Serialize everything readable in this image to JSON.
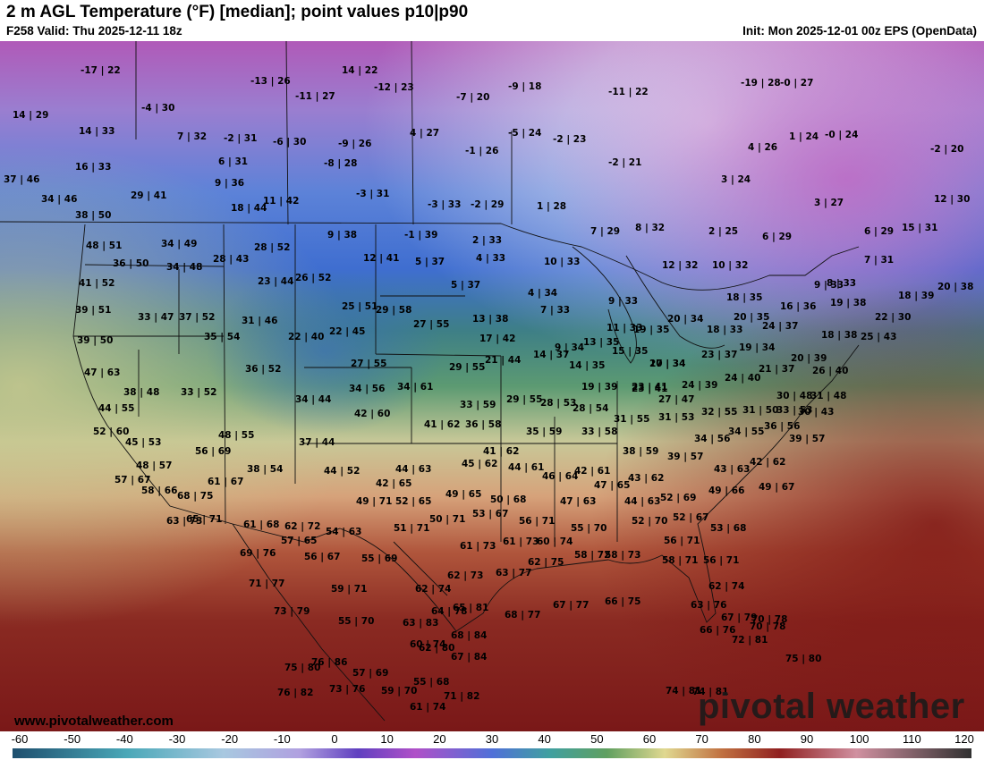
{
  "header": {
    "title": "2 m AGL Temperature (°F) [median]; point values p10|p90",
    "valid": "F258 Valid: Thu 2025-12-11 18z",
    "init": "Init: Mon 2025-12-01 00z EPS (OpenData)"
  },
  "footer": {
    "website": "www.pivotalweather.com",
    "brand": "pivotal weather"
  },
  "colorbar": {
    "ticks": [
      "-60",
      "-50",
      "-40",
      "-30",
      "-20",
      "-10",
      "0",
      "10",
      "20",
      "30",
      "40",
      "50",
      "60",
      "70",
      "80",
      "90",
      "100",
      "110",
      "120"
    ]
  },
  "points": [
    "-17|22",
    "-13|26",
    "14|22",
    "-12|23",
    "-7|20",
    "-9|18",
    "-11|22",
    "-19|28",
    "-0|27",
    "14|29",
    "-4|30",
    "-11|27",
    "4|27",
    "14|33",
    "7|32",
    "-2|31",
    "-6|30",
    "-9|26",
    "-5|24",
    "-2|23",
    "16|33",
    "6|31",
    "-8|28",
    "-1|26",
    "-2|21",
    "4|26",
    "1|24",
    "-0|24",
    "-2|20",
    "37|46",
    "9|36",
    "-3|31",
    "3|24",
    "34|46",
    "29|41",
    "11|42",
    "-3|33",
    "-2|29",
    "1|28",
    "3|27",
    "12|30",
    "18|44",
    "38|50",
    "9|38",
    "-1|39",
    "2|33",
    "7|29",
    "8|32",
    "2|25",
    "6|29",
    "6|29",
    "15|31",
    "48|51",
    "34|49",
    "28|52",
    "12|41",
    "5|37",
    "4|33",
    "10|33",
    "12|32",
    "10|32",
    "7|31",
    "36|50",
    "34|48",
    "28|43",
    "23|44",
    "26|52",
    "5|37",
    "41|52",
    "4|34",
    "9|33",
    "8|33",
    "18|39",
    "20|38",
    "39|51",
    "33|47",
    "37|52",
    "31|46",
    "25|51",
    "29|58",
    "7|33",
    "9|33",
    "18|35",
    "16|36",
    "19|38",
    "22|30",
    "39|50",
    "35|54",
    "22|40",
    "22|45",
    "27|55",
    "13|38",
    "11|33",
    "20|34",
    "20|35",
    "24|37",
    "17|42",
    "9|34",
    "13|35",
    "19|35",
    "18|33",
    "18|38",
    "25|43",
    "47|63",
    "36|52",
    "27|55",
    "29|55",
    "21|44",
    "14|37",
    "14|35",
    "15|35",
    "20|34",
    "23|37",
    "19|34",
    "20|39",
    "21|37",
    "23|41",
    "38|48",
    "33|52",
    "34|56",
    "34|61",
    "17|34",
    "24|40",
    "26|40",
    "24|39",
    "19|39",
    "23|41",
    "30|48",
    "31|48",
    "34|44",
    "42|60",
    "33|59",
    "29|55",
    "28|53",
    "28|54",
    "27|47",
    "30|43",
    "44|55",
    "41|62",
    "36|58",
    "31|55",
    "31|53",
    "32|55",
    "31|50",
    "33|53",
    "52|60",
    "48|55",
    "37|44",
    "35|59",
    "33|58",
    "34|55",
    "36|56",
    "45|53",
    "56|69",
    "41|62",
    "38|59",
    "34|56",
    "39|57",
    "48|57",
    "38|54",
    "44|52",
    "44|63",
    "45|62",
    "44|61",
    "42|61",
    "39|57",
    "42|62",
    "43|63",
    "57|67",
    "61|67",
    "42|65",
    "46|64",
    "47|65",
    "43|62",
    "49|67",
    "58|66",
    "68|75",
    "49|66",
    "49|65",
    "49|71",
    "52|65",
    "50|68",
    "47|63",
    "44|63",
    "52|69",
    "63|73",
    "65|71",
    "61|68",
    "62|72",
    "50|71",
    "53|67",
    "56|71",
    "55|70",
    "52|70",
    "52|67",
    "53|68",
    "57|65",
    "54|63",
    "51|71",
    "61|73",
    "61|73",
    "60|74",
    "56|71",
    "69|76",
    "56|67",
    "55|69",
    "58|72",
    "58|73",
    "62|75",
    "58|71",
    "56|71",
    "71|77",
    "59|71",
    "63|77",
    "62|73",
    "62|74",
    "62|74",
    "73|79",
    "55|70",
    "63|83",
    "64|78",
    "65|81",
    "68|77",
    "67|77",
    "66|75",
    "63|76",
    "67|79",
    "74|81",
    "60|74",
    "62|80",
    "68|84",
    "70|78",
    "66|76",
    "70|78",
    "72|81",
    "76|86",
    "67|84",
    "75|80",
    "57|69",
    "55|68",
    "75|80",
    "76|82",
    "73|76",
    "59|70",
    "71|82",
    "61|74",
    "74|81"
  ]
}
